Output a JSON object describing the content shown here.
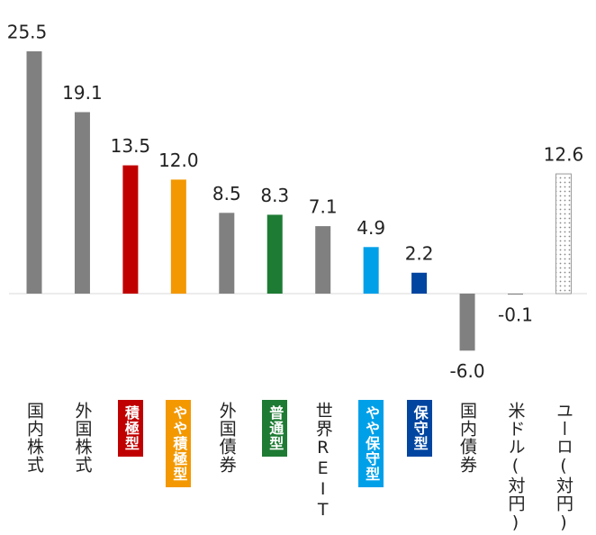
{
  "chart_data": {
    "type": "bar",
    "categories": [
      "国内株式",
      "外国株式",
      "積極型",
      "やや積極型",
      "外国債券",
      "普通型",
      "世界REIT",
      "やや保守型",
      "保守型",
      "国内債券",
      "米ドル(対円)",
      "ユーロ(対円)"
    ],
    "values": [
      25.5,
      19.1,
      13.5,
      12.0,
      8.5,
      8.3,
      7.1,
      4.9,
      2.2,
      -6.0,
      -0.1,
      12.6
    ],
    "value_labels": [
      "25.5",
      "19.1",
      "13.5",
      "12.0",
      "8.5",
      "8.3",
      "7.1",
      "4.9",
      "2.2",
      "-6.0",
      "-0.1",
      "12.6"
    ],
    "colors": [
      "#808080",
      "#808080",
      "#c00000",
      "#f39800",
      "#808080",
      "#1e7b34",
      "#808080",
      "#00a0e9",
      "#0045a0",
      "#808080",
      "#808080",
      "#ffffff"
    ],
    "fill_pattern": [
      "solid",
      "solid",
      "solid",
      "solid",
      "solid",
      "solid",
      "solid",
      "solid",
      "solid",
      "solid",
      "solid",
      "dots"
    ],
    "label_highlight": [
      false,
      false,
      true,
      true,
      false,
      true,
      false,
      true,
      true,
      false,
      false,
      false
    ]
  }
}
